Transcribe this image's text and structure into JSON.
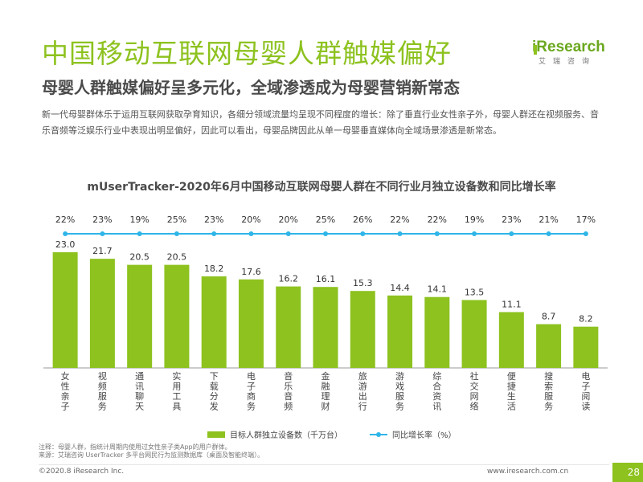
{
  "page": {
    "title": "中国移动互联网母婴人群触媒偏好",
    "subtitle": "母婴人群触媒偏好呈多元化，全域渗透成为母婴营销新常态",
    "description": "新一代母婴群体乐于运用互联网获取孕育知识，各细分领域流量均呈现不同程度的增长：除了垂直行业女性亲子外，母婴人群还在视频服务、音乐音频等泛娱乐行业中表现出明显偏好，因此可以看出，母婴品牌因此从单一母婴垂直媒体向全域场景渗透是新常态。",
    "logo": {
      "text": "iResearch",
      "sub": "艾瑞咨询"
    },
    "notes": [
      "注释：母婴人群，指统计周期内使用过女性亲子类App的用户群体。",
      "来源：艾瑞咨询 UserTracker 多平台网民行为监测数据库（桌面及智能终端）。"
    ],
    "footer_left": "©2020.8 iResearch Inc.",
    "footer_right": "www.iresearch.com.cn",
    "page_number": "28"
  },
  "chart_data": {
    "type": "bar",
    "title": "mUserTracker-2020年6月中国移动互联网母婴人群在不同行业月独立设备数和同比增长率",
    "categories": [
      "女性亲子",
      "视频服务",
      "通讯聊天",
      "实用工具",
      "下载分发",
      "电子商务",
      "音乐音频",
      "金融理财",
      "旅游出行",
      "游戏服务",
      "综合资讯",
      "社交网络",
      "便捷生活",
      "搜索服务",
      "电子阅读"
    ],
    "series": [
      {
        "name": "目标人群独立设备数（千万台）",
        "type": "bar",
        "color": "#8dc21f",
        "values": [
          23.0,
          21.7,
          20.5,
          20.5,
          18.2,
          17.6,
          16.2,
          16.1,
          15.3,
          14.4,
          14.1,
          13.5,
          11.1,
          8.7,
          8.2
        ],
        "labels": [
          "23.0",
          "21.7",
          "20.5",
          "20.5",
          "18.2",
          "17.6",
          "16.2",
          "16.1",
          "15.3",
          "14.4",
          "14.1",
          "13.5",
          "11.1",
          "8.7",
          "8.2"
        ]
      },
      {
        "name": "同比增长率（%）",
        "type": "line",
        "color": "#2fb5e8",
        "values": [
          22,
          23,
          19,
          25,
          23,
          20,
          20,
          25,
          26,
          22,
          22,
          19,
          23,
          21,
          17
        ],
        "labels": [
          "22%",
          "23%",
          "19%",
          "25%",
          "23%",
          "20%",
          "20%",
          "25%",
          "26%",
          "22%",
          "22%",
          "19%",
          "23%",
          "21%",
          "17%"
        ]
      }
    ],
    "ylim": [
      0,
      25
    ],
    "ylim2": [
      0,
      100
    ],
    "grid": false,
    "legend": "bottom"
  }
}
